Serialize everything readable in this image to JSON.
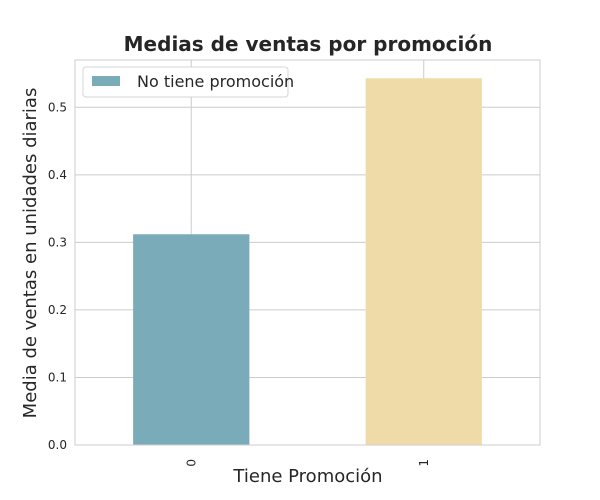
{
  "chart_data": {
    "type": "bar",
    "title": "Medias de ventas por promoción",
    "xlabel": "Tiene Promoción",
    "ylabel": "Media de ventas en unidades diarias",
    "categories": [
      "0",
      "1"
    ],
    "series": [
      {
        "name": "No tiene promoción",
        "values": [
          0.312,
          0.543
        ]
      }
    ],
    "bar_colors": [
      "#79abb9",
      "#efdba7"
    ],
    "ylim": [
      0,
      0.57
    ],
    "yticks": [
      0.0,
      0.1,
      0.2,
      0.3,
      0.4,
      0.5
    ],
    "ytick_labels": [
      "0.0",
      "0.1",
      "0.2",
      "0.3",
      "0.4",
      "0.5"
    ],
    "grid": true,
    "legend_position": "top-left"
  }
}
